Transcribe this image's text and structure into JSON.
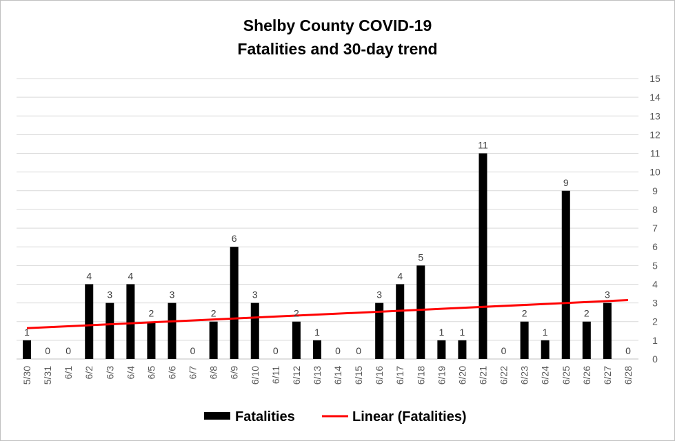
{
  "chart_data": {
    "type": "bar",
    "title": "Shelby County COVID-19",
    "subtitle": "Fatalities and 30-day trend",
    "categories": [
      "5/30",
      "5/31",
      "6/1",
      "6/2",
      "6/3",
      "6/4",
      "6/5",
      "6/6",
      "6/7",
      "6/8",
      "6/9",
      "6/10",
      "6/11",
      "6/12",
      "6/13",
      "6/14",
      "6/15",
      "6/16",
      "6/17",
      "6/18",
      "6/19",
      "6/20",
      "6/21",
      "6/22",
      "6/23",
      "6/24",
      "6/25",
      "6/26",
      "6/27",
      "6/28"
    ],
    "series": [
      {
        "name": "Fatalities",
        "values": [
          1,
          0,
          0,
          4,
          3,
          4,
          2,
          3,
          0,
          2,
          6,
          3,
          0,
          2,
          1,
          0,
          0,
          3,
          4,
          5,
          1,
          1,
          11,
          0,
          2,
          1,
          9,
          2,
          3,
          0
        ],
        "color": "#000000"
      }
    ],
    "trendline": {
      "name": "Linear (Fatalities)",
      "type": "linear",
      "start": 1.65,
      "end": 3.15,
      "color": "#ff0000"
    },
    "ylim": [
      0,
      15
    ],
    "yticks": [
      0,
      1,
      2,
      3,
      4,
      5,
      6,
      7,
      8,
      9,
      10,
      11,
      12,
      13,
      14,
      15
    ],
    "y_axis_side": "right",
    "grid": true,
    "legend_position": "bottom",
    "data_labels": true
  }
}
